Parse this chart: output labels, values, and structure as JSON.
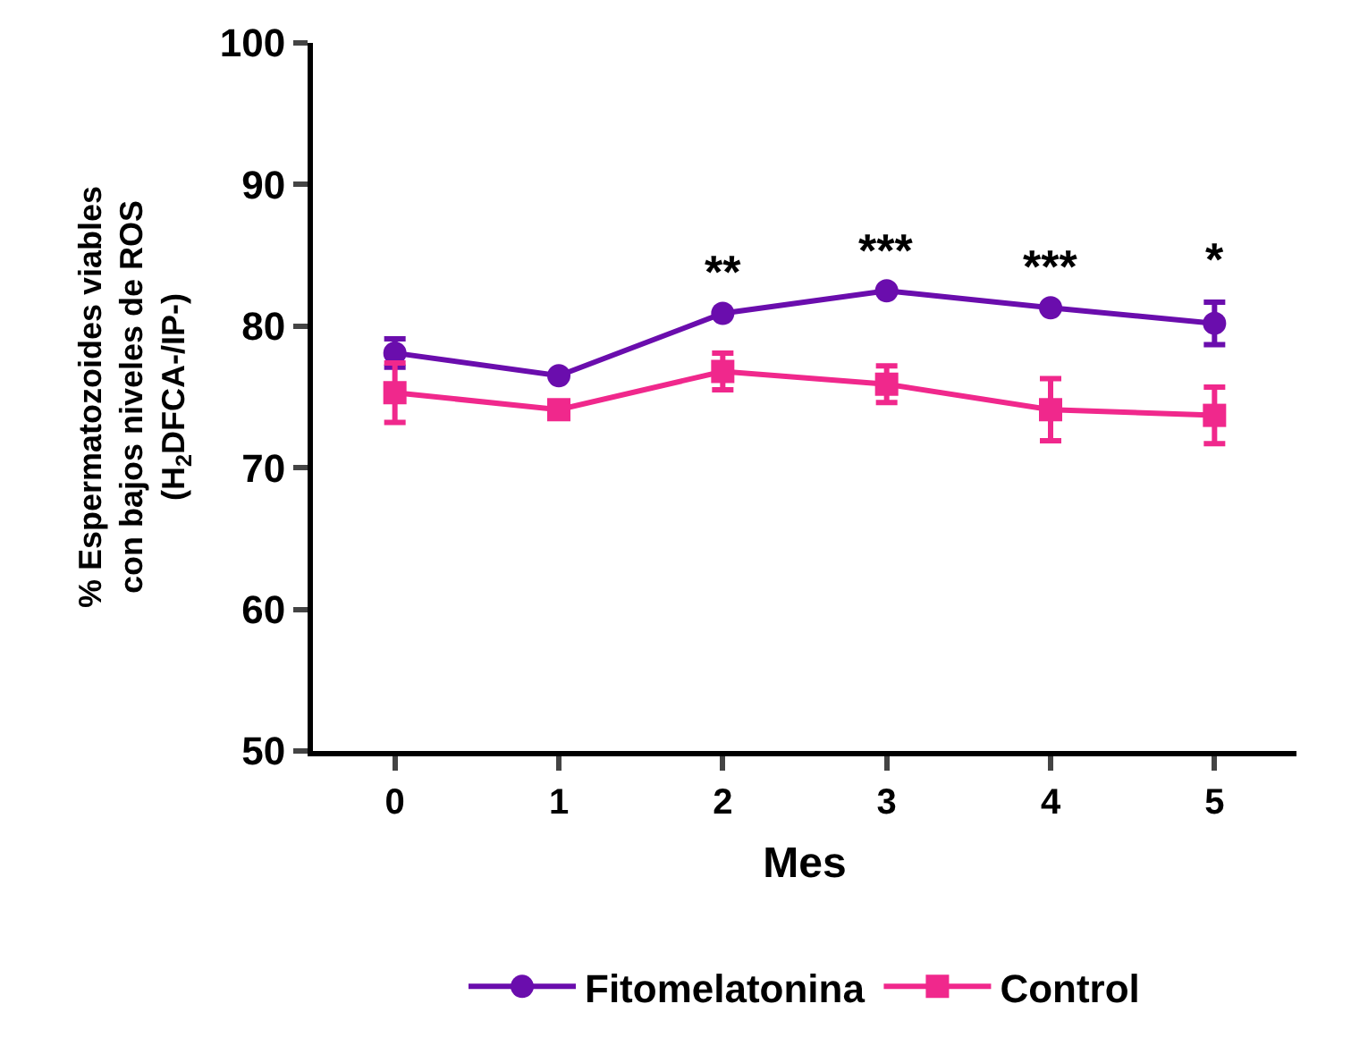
{
  "chart_data": {
    "type": "line",
    "xlabel": "Mes",
    "ylabel": "% Espermatozoides viables\ncon bajos niveles de ROS\n(H$_{2}$DFCA-/IP-)",
    "categories": [
      "0",
      "1",
      "2",
      "3",
      "4",
      "5"
    ],
    "series": [
      {
        "name": "Fitomelatonina",
        "color": "#6a0dad",
        "marker": "circle",
        "values": [
          78.1,
          76.5,
          80.9,
          82.5,
          81.3,
          80.2
        ],
        "errors": [
          1.0,
          null,
          null,
          null,
          null,
          1.5
        ]
      },
      {
        "name": "Control",
        "color": "#f0288c",
        "marker": "square",
        "values": [
          75.3,
          74.1,
          76.8,
          75.9,
          74.1,
          73.7
        ],
        "errors": [
          2.1,
          null,
          1.3,
          1.3,
          2.2,
          2.0
        ]
      }
    ],
    "ylim": [
      50,
      100
    ],
    "yticks": [
      50,
      60,
      70,
      80,
      90,
      100
    ],
    "annotations": [
      {
        "text": "**",
        "x": "2",
        "y": 80.9
      },
      {
        "text": "***",
        "x": "3",
        "y": 82.5
      },
      {
        "text": "***",
        "x": "4",
        "y": 81.3
      },
      {
        "text": "*",
        "x": "5",
        "y": 80.2
      }
    ],
    "legend": "bottom",
    "line_style": "solid"
  }
}
